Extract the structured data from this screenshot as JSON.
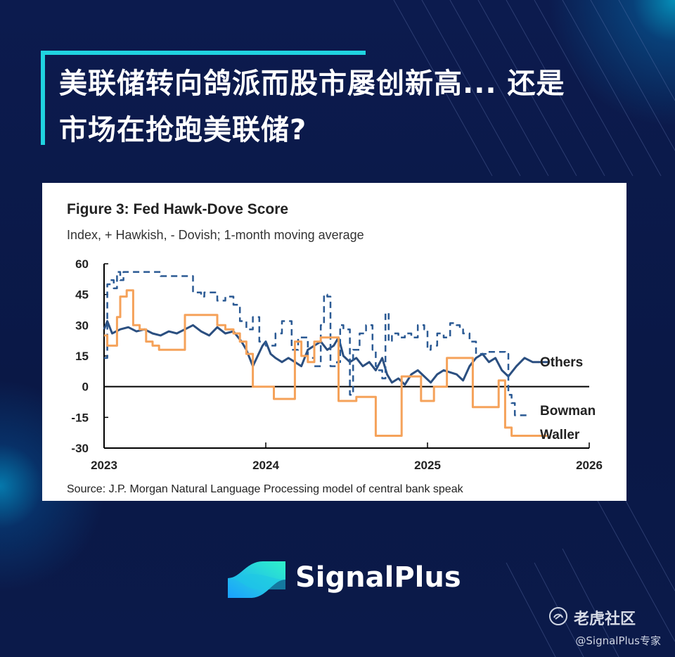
{
  "headline": {
    "line1": "美联储转向鸽派而股市屡创新高... 还是",
    "line2": "市场在抢跑美联储?"
  },
  "figure": {
    "title": "Figure 3: Fed Hawk-Dove Score",
    "subtitle": "Index, + Hawkish, - Dovish; 1-month moving average",
    "source": "Source: J.P. Morgan Natural Language Processing model of central bank speak"
  },
  "brand": {
    "name": "SignalPlus"
  },
  "watermark": {
    "name": "老虎社区",
    "handle": "@SignalPlus专家"
  },
  "colors": {
    "others": "#2b4f80",
    "bowman": "#2b5a94",
    "waller": "#f5a25a",
    "accent": "#20d4e0",
    "background": "#0b1a4a"
  },
  "chart_data": {
    "type": "line",
    "title": "Figure 3: Fed Hawk-Dove Score",
    "subtitle": "Index, + Hawkish, - Dovish; 1-month moving average",
    "xlabel": "",
    "ylabel": "",
    "xlim": [
      2023.0,
      2026.0
    ],
    "ylim": [
      -30,
      60
    ],
    "x_ticks": [
      "2023",
      "2024",
      "2025",
      "2026"
    ],
    "y_ticks": [
      "60",
      "45",
      "30",
      "15",
      "0",
      "-15",
      "-30"
    ],
    "grid": false,
    "series": [
      {
        "name": "Others",
        "style": "solid",
        "x": [
          2023.0,
          2023.02,
          2023.05,
          2023.1,
          2023.15,
          2023.2,
          2023.25,
          2023.3,
          2023.35,
          2023.4,
          2023.45,
          2023.5,
          2023.55,
          2023.6,
          2023.65,
          2023.7,
          2023.75,
          2023.8,
          2023.85,
          2023.88,
          2023.92,
          2023.95,
          2023.98,
          2024.0,
          2024.03,
          2024.06,
          2024.1,
          2024.14,
          2024.18,
          2024.22,
          2024.26,
          2024.3,
          2024.34,
          2024.38,
          2024.42,
          2024.45,
          2024.48,
          2024.52,
          2024.56,
          2024.6,
          2024.64,
          2024.68,
          2024.72,
          2024.75,
          2024.78,
          2024.82,
          2024.86,
          2024.9,
          2024.94,
          2024.98,
          2025.02,
          2025.06,
          2025.1,
          2025.14,
          2025.18,
          2025.22,
          2025.26,
          2025.3,
          2025.34,
          2025.38,
          2025.42,
          2025.46,
          2025.5,
          2025.55,
          2025.6,
          2025.65,
          2025.7,
          2025.75
        ],
        "y": [
          28,
          32,
          26,
          28,
          29,
          27,
          28,
          26,
          25,
          27,
          26,
          28,
          30,
          27,
          25,
          29,
          26,
          27,
          22,
          18,
          10,
          15,
          20,
          22,
          16,
          14,
          12,
          14,
          12,
          10,
          18,
          20,
          22,
          18,
          20,
          24,
          15,
          12,
          14,
          10,
          12,
          8,
          14,
          6,
          2,
          4,
          1,
          6,
          8,
          5,
          2,
          6,
          8,
          7,
          6,
          3,
          10,
          14,
          16,
          12,
          14,
          8,
          5,
          10,
          14,
          12,
          12,
          12
        ]
      },
      {
        "name": "Bowman",
        "style": "dashed",
        "x": [
          2023.0,
          2023.02,
          2023.04,
          2023.06,
          2023.08,
          2023.1,
          2023.12,
          2023.3,
          2023.35,
          2023.5,
          2023.55,
          2023.6,
          2023.62,
          2023.7,
          2023.75,
          2023.8,
          2023.84,
          2023.88,
          2023.92,
          2023.96,
          2024.0,
          2024.06,
          2024.1,
          2024.16,
          2024.2,
          2024.26,
          2024.3,
          2024.34,
          2024.36,
          2024.38,
          2024.4,
          2024.44,
          2024.46,
          2024.48,
          2024.52,
          2024.54,
          2024.58,
          2024.62,
          2024.66,
          2024.68,
          2024.7,
          2024.72,
          2024.74,
          2024.76,
          2024.78,
          2024.82,
          2024.86,
          2024.9,
          2024.94,
          2024.98,
          2025.0,
          2025.02,
          2025.06,
          2025.1,
          2025.14,
          2025.18,
          2025.2,
          2025.22,
          2025.26,
          2025.3,
          2025.36,
          2025.4,
          2025.46,
          2025.48,
          2025.5,
          2025.52,
          2025.54,
          2025.58,
          2025.62
        ],
        "y": [
          14,
          50,
          52,
          48,
          56,
          52,
          56,
          56,
          54,
          54,
          46,
          44,
          46,
          42,
          44,
          40,
          32,
          28,
          34,
          22,
          20,
          26,
          32,
          18,
          24,
          14,
          10,
          30,
          45,
          44,
          10,
          12,
          30,
          28,
          -4,
          18,
          26,
          30,
          18,
          10,
          8,
          4,
          36,
          22,
          26,
          24,
          26,
          24,
          30,
          28,
          18,
          20,
          26,
          24,
          31,
          30,
          28,
          26,
          22,
          16,
          17,
          17,
          17,
          16,
          -4,
          -8,
          -14,
          -14,
          -14
        ]
      },
      {
        "name": "Waller",
        "style": "solid",
        "x": [
          2023.0,
          2023.02,
          2023.04,
          2023.08,
          2023.1,
          2023.14,
          2023.18,
          2023.22,
          2023.26,
          2023.3,
          2023.34,
          2023.4,
          2023.45,
          2023.5,
          2023.55,
          2023.6,
          2023.65,
          2023.7,
          2023.75,
          2023.8,
          2023.84,
          2023.88,
          2023.92,
          2023.95,
          2024.0,
          2024.05,
          2024.1,
          2024.14,
          2024.18,
          2024.22,
          2024.26,
          2024.3,
          2024.34,
          2024.38,
          2024.42,
          2024.45,
          2024.48,
          2024.52,
          2024.56,
          2024.6,
          2024.64,
          2024.68,
          2024.72,
          2024.76,
          2024.8,
          2024.84,
          2024.88,
          2024.92,
          2024.96,
          2025.0,
          2025.04,
          2025.08,
          2025.12,
          2025.16,
          2025.2,
          2025.24,
          2025.28,
          2025.32,
          2025.36,
          2025.4,
          2025.44,
          2025.48,
          2025.52,
          2025.56,
          2025.6,
          2025.65,
          2025.7,
          2025.74
        ],
        "y": [
          25,
          20,
          20,
          34,
          44,
          47,
          30,
          28,
          22,
          20,
          18,
          18,
          18,
          35,
          35,
          35,
          35,
          30,
          28,
          26,
          22,
          16,
          0,
          0,
          0,
          -6,
          -6,
          -6,
          22,
          15,
          12,
          22,
          24,
          24,
          24,
          -7,
          -7,
          -7,
          -5,
          -5,
          -5,
          -24,
          -24,
          -24,
          -24,
          5,
          5,
          5,
          -7,
          -7,
          0,
          0,
          14,
          14,
          14,
          14,
          -10,
          -10,
          -10,
          -10,
          3,
          -20,
          -24,
          -24,
          -24,
          -24,
          -24,
          -24
        ]
      }
    ],
    "legend": "inline-right"
  }
}
